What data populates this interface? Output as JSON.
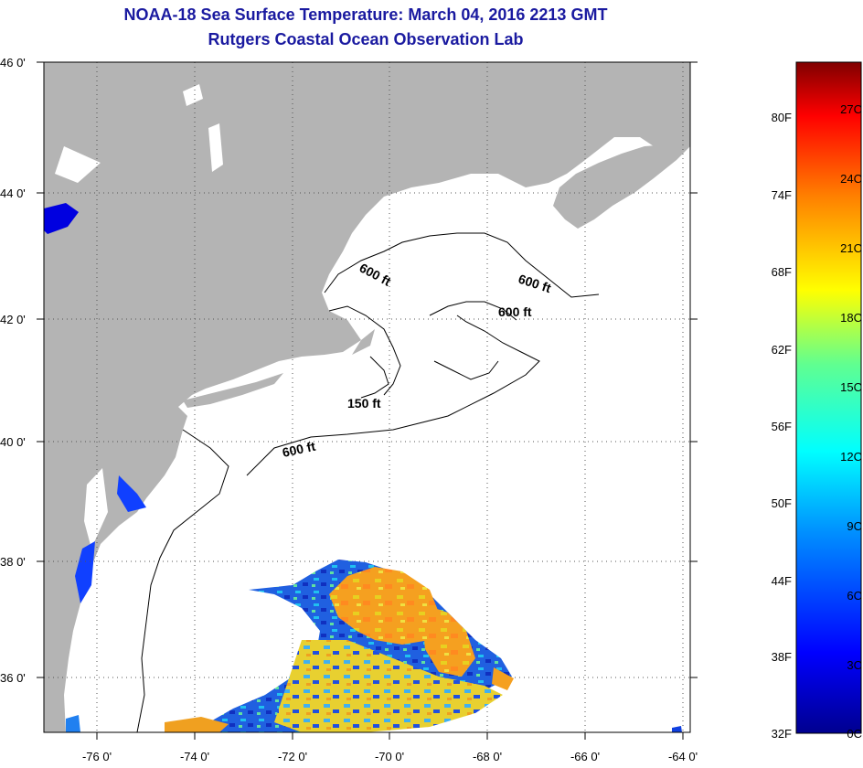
{
  "header": {
    "title": "NOAA-18 Sea Surface Temperature:  March 04, 2016 2213 GMT",
    "subtitle": "Rutgers Coastal Ocean Observation Lab"
  },
  "axes": {
    "lat_labels": [
      "46 0'",
      "44 0'",
      "42 0'",
      "40 0'",
      "38 0'",
      "36 0'"
    ],
    "lon_labels": [
      "-76 0'",
      "-74 0'",
      "-72 0'",
      "-70 0'",
      "-68 0'",
      "-66 0'",
      "-64 0'"
    ]
  },
  "isobaths": {
    "label_600_a": "600 ft",
    "label_600_b": "600 ft",
    "label_600_c": "600 ft",
    "label_150": "150 ft",
    "label_600_d": "600 ft"
  },
  "colorbar": {
    "fahrenheit": [
      "80F",
      "74F",
      "68F",
      "62F",
      "56F",
      "50F",
      "44F",
      "38F",
      "32F"
    ],
    "celsius": [
      "27C",
      "24C",
      "21C",
      "18C",
      "15C",
      "12C",
      "9C",
      "6C",
      "3C",
      "0C"
    ]
  },
  "colors": {
    "land": "#b4b4b4",
    "water": "#ffffff",
    "title": "#1a1aa0"
  }
}
